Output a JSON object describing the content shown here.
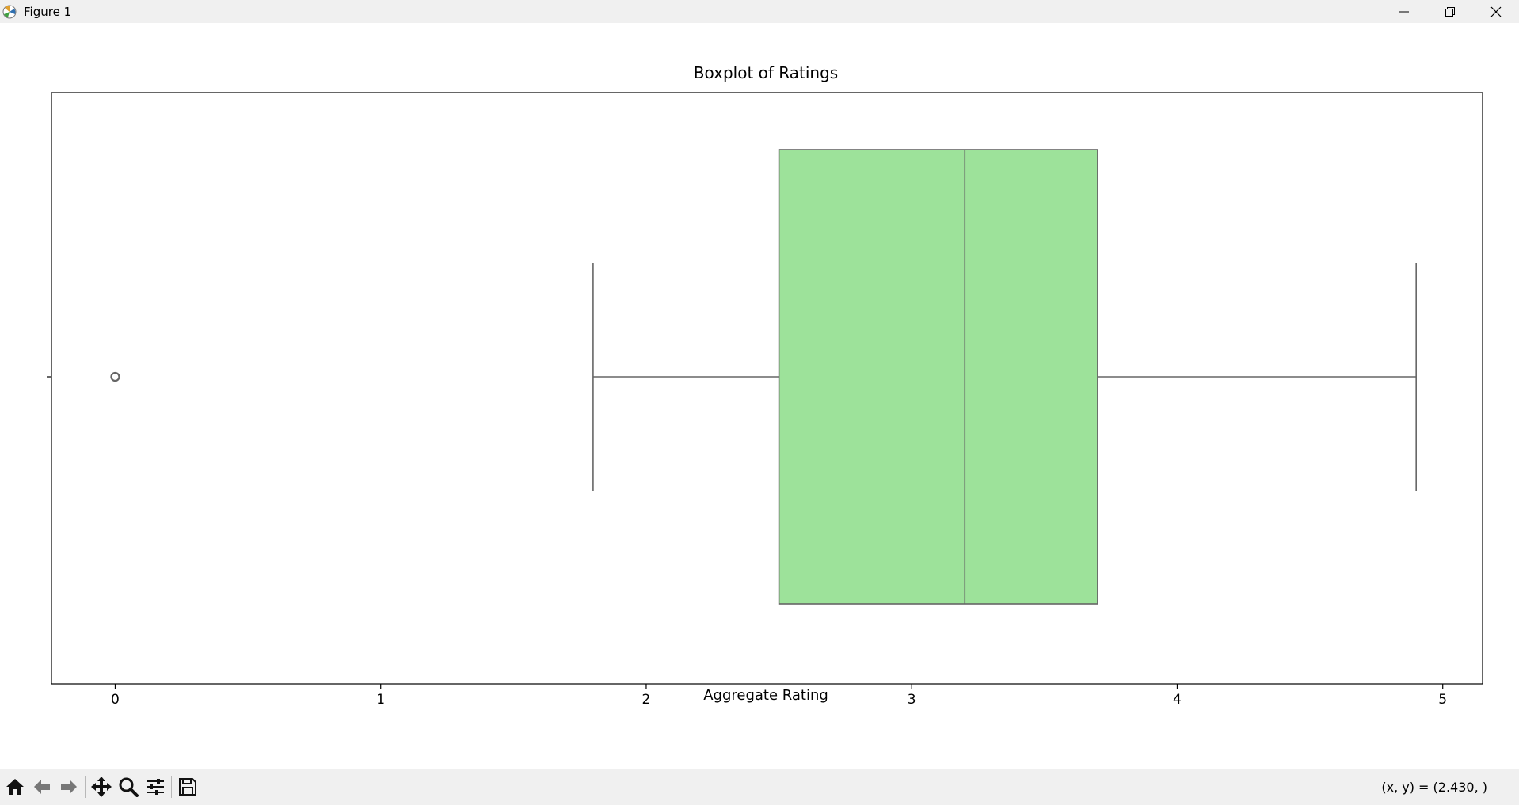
{
  "window": {
    "title": "Figure 1",
    "controls": [
      "minimize",
      "restore",
      "close"
    ]
  },
  "toolbar": {
    "buttons": [
      "home-icon",
      "back-arrow-icon",
      "forward-arrow-icon",
      "pan-icon",
      "zoom-icon",
      "configure-subplots-icon",
      "save-icon"
    ],
    "coordinate_readout": "(x, y) = (2.430, )"
  },
  "chart_data": {
    "type": "boxplot",
    "orientation": "horizontal",
    "title": "Boxplot of Ratings",
    "xlabel": "Aggregate Rating",
    "ylabel": "",
    "xlim": [
      -0.24,
      5.15
    ],
    "xticks": [
      0,
      1,
      2,
      3,
      4,
      5
    ],
    "xtick_labels": [
      "0",
      "1",
      "2",
      "3",
      "4",
      "5"
    ],
    "box": {
      "whisker_low": 1.8,
      "q1": 2.5,
      "median": 3.2,
      "q3": 3.7,
      "whisker_high": 4.9
    },
    "outliers": [
      0.0
    ],
    "colors": {
      "box_fill": "#9de29a",
      "line": "#666666",
      "outlier": "#666666"
    }
  }
}
